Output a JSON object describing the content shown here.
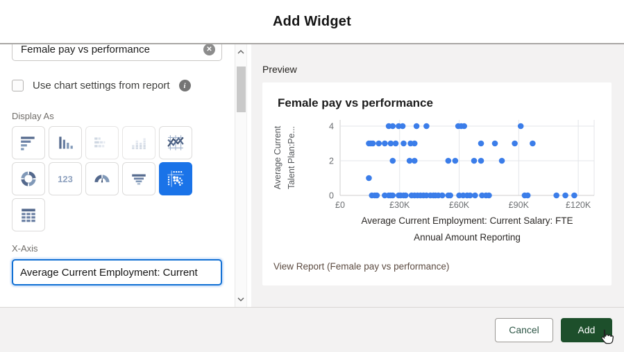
{
  "dialog": {
    "title": "Add Widget"
  },
  "icons": {
    "clear": "✕",
    "info": "i",
    "metric": "123"
  },
  "left_panel": {
    "title_input": {
      "value": "Female pay vs performance"
    },
    "use_chart_settings": {
      "label": "Use chart settings from report",
      "checked": false
    },
    "display_as_label": "Display As",
    "chart_types": [
      {
        "id": "bar-horizontal",
        "state": "default"
      },
      {
        "id": "bar-vertical",
        "state": "default"
      },
      {
        "id": "stacked-bar-horizontal",
        "state": "disabled"
      },
      {
        "id": "stacked-bar-vertical",
        "state": "disabled"
      },
      {
        "id": "line",
        "state": "default"
      },
      {
        "id": "donut",
        "state": "default"
      },
      {
        "id": "metric",
        "state": "default"
      },
      {
        "id": "gauge",
        "state": "default"
      },
      {
        "id": "funnel",
        "state": "default"
      },
      {
        "id": "scatter",
        "state": "selected"
      },
      {
        "id": "table",
        "state": "default"
      }
    ],
    "x_axis_label": "X-Axis",
    "x_axis_input": {
      "value": "Average Current Employment: Current"
    }
  },
  "preview": {
    "label": "Preview",
    "view_report": "View Report (Female pay vs performance)"
  },
  "chart_data": {
    "type": "scatter",
    "title": "Female pay vs performance",
    "xlabel": "Average Current Employment: Current Salary: FTE Annual Amount Reporting",
    "xlabel_lines": [
      "Average Current Employment: Current Salary: FTE",
      "Annual Amount Reporting"
    ],
    "ylabel": "Average Current Talent Plan:Pe...",
    "ylabel_lines": [
      "Average Current",
      "Talent Plan:Pe..."
    ],
    "xlim": [
      0,
      128000
    ],
    "ylim": [
      0,
      4
    ],
    "grid": true,
    "legend": false,
    "point_color": "#3b7de9",
    "x_ticks": [
      {
        "value": 0,
        "label": "£0"
      },
      {
        "value": 30000,
        "label": "£30K"
      },
      {
        "value": 60000,
        "label": "£60K"
      },
      {
        "value": 90000,
        "label": "£90K"
      },
      {
        "value": 120000,
        "label": "£120K"
      }
    ],
    "y_ticks": [
      {
        "value": 0,
        "label": "0"
      },
      {
        "value": 2,
        "label": "2"
      },
      {
        "value": 4,
        "label": "4"
      }
    ],
    "points": [
      [
        24500,
        4
      ],
      [
        26500,
        4
      ],
      [
        29500,
        4
      ],
      [
        31500,
        4
      ],
      [
        38500,
        4
      ],
      [
        43500,
        4
      ],
      [
        59500,
        4
      ],
      [
        61000,
        4
      ],
      [
        62500,
        4
      ],
      [
        91000,
        4
      ],
      [
        14500,
        3
      ],
      [
        15500,
        3
      ],
      [
        16500,
        3
      ],
      [
        19500,
        3
      ],
      [
        22500,
        3
      ],
      [
        25500,
        3
      ],
      [
        28000,
        3
      ],
      [
        32000,
        3
      ],
      [
        35500,
        3
      ],
      [
        37500,
        3
      ],
      [
        71000,
        3
      ],
      [
        78000,
        3
      ],
      [
        88000,
        3
      ],
      [
        97000,
        3
      ],
      [
        26500,
        2
      ],
      [
        35000,
        2
      ],
      [
        37500,
        2
      ],
      [
        54500,
        2
      ],
      [
        58000,
        2
      ],
      [
        67500,
        2
      ],
      [
        71000,
        2
      ],
      [
        81500,
        2
      ],
      [
        14500,
        1
      ],
      [
        16000,
        0
      ],
      [
        17500,
        0
      ],
      [
        18500,
        0
      ],
      [
        22500,
        0
      ],
      [
        24500,
        0
      ],
      [
        25500,
        0
      ],
      [
        26500,
        0
      ],
      [
        29500,
        0
      ],
      [
        30500,
        0
      ],
      [
        32000,
        0
      ],
      [
        33000,
        0
      ],
      [
        36000,
        0
      ],
      [
        37500,
        0
      ],
      [
        39000,
        0
      ],
      [
        40500,
        0
      ],
      [
        42000,
        0
      ],
      [
        43500,
        0
      ],
      [
        45500,
        0
      ],
      [
        47000,
        0
      ],
      [
        48000,
        0
      ],
      [
        49500,
        0
      ],
      [
        51500,
        0
      ],
      [
        54500,
        0
      ],
      [
        55500,
        0
      ],
      [
        60000,
        0
      ],
      [
        62000,
        0
      ],
      [
        64000,
        0
      ],
      [
        65500,
        0
      ],
      [
        68000,
        0
      ],
      [
        71500,
        0
      ],
      [
        73500,
        0
      ],
      [
        75000,
        0
      ],
      [
        93000,
        0
      ],
      [
        94500,
        0
      ],
      [
        109000,
        0
      ],
      [
        113500,
        0
      ],
      [
        118000,
        0
      ]
    ]
  },
  "footer": {
    "cancel_label": "Cancel",
    "add_label": "Add"
  }
}
